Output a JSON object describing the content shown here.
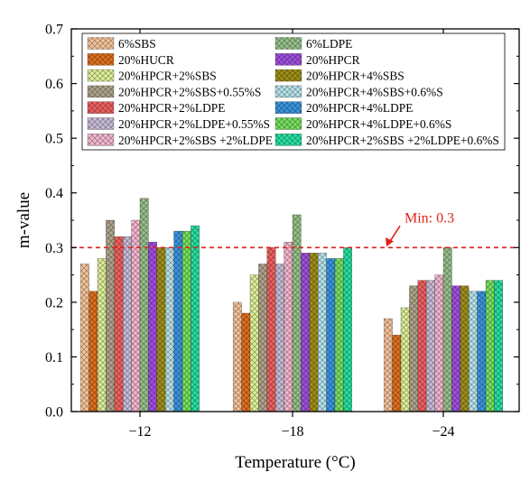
{
  "chart_data": {
    "type": "bar",
    "xlabel": "Temperature (°C)",
    "ylabel": "m-value",
    "ylim": [
      0,
      0.7
    ],
    "yticks": [
      "0.0",
      "0.1",
      "0.2",
      "0.3",
      "0.4",
      "0.5",
      "0.6",
      "0.7"
    ],
    "categories": [
      "−12",
      "−18",
      "−24"
    ],
    "grid": false,
    "legend_position": "top, two columns",
    "reference_line": {
      "label": "Min: 0.3",
      "value": 0.3,
      "color": "#e0201b"
    },
    "series": [
      {
        "name": "6%SBS",
        "color": "#f5c49b",
        "values": [
          0.27,
          0.2,
          0.17
        ]
      },
      {
        "name": "20%HUCR",
        "color": "#e07020",
        "values": [
          0.22,
          0.18,
          0.14
        ]
      },
      {
        "name": "20%HPCR+2%SBS",
        "color": "#dff09a",
        "values": [
          0.28,
          0.25,
          0.19
        ]
      },
      {
        "name": "20%HPCR+2%SBS+0.55%S",
        "color": "#b0a58c",
        "values": [
          0.35,
          0.27,
          0.23
        ]
      },
      {
        "name": "20%HPCR+2%LDPE",
        "color": "#f06060",
        "values": [
          0.32,
          0.3,
          0.24
        ]
      },
      {
        "name": "20%HPCR+2%LDPE+0.55%S",
        "color": "#c8bdd8",
        "values": [
          0.32,
          0.27,
          0.24
        ]
      },
      {
        "name": "20%HPCR+2%SBS +2%LDPE",
        "color": "#f5b8d0",
        "values": [
          0.35,
          0.31,
          0.25
        ]
      },
      {
        "name": "6%LDPE",
        "color": "#97c08a",
        "values": [
          0.39,
          0.36,
          0.3
        ]
      },
      {
        "name": "20%HPCR",
        "color": "#a050e0",
        "values": [
          0.31,
          0.29,
          0.23
        ]
      },
      {
        "name": "20%HPCR+4%SBS",
        "color": "#a09018",
        "values": [
          0.3,
          0.29,
          0.23
        ]
      },
      {
        "name": "20%HPCR+4%SBS+0.6%S",
        "color": "#b8e4ec",
        "values": [
          0.3,
          0.29,
          0.22
        ]
      },
      {
        "name": "20%HPCR+4%LDPE",
        "color": "#3a95e0",
        "values": [
          0.33,
          0.28,
          0.22
        ]
      },
      {
        "name": "20%HPCR+4%LDPE+0.6%S",
        "color": "#78e060",
        "values": [
          0.33,
          0.28,
          0.24
        ]
      },
      {
        "name": "20%HPCR+2%SBS +2%LDPE+0.6%S",
        "color": "#28e0a0",
        "values": [
          0.34,
          0.3,
          0.24
        ]
      }
    ]
  }
}
